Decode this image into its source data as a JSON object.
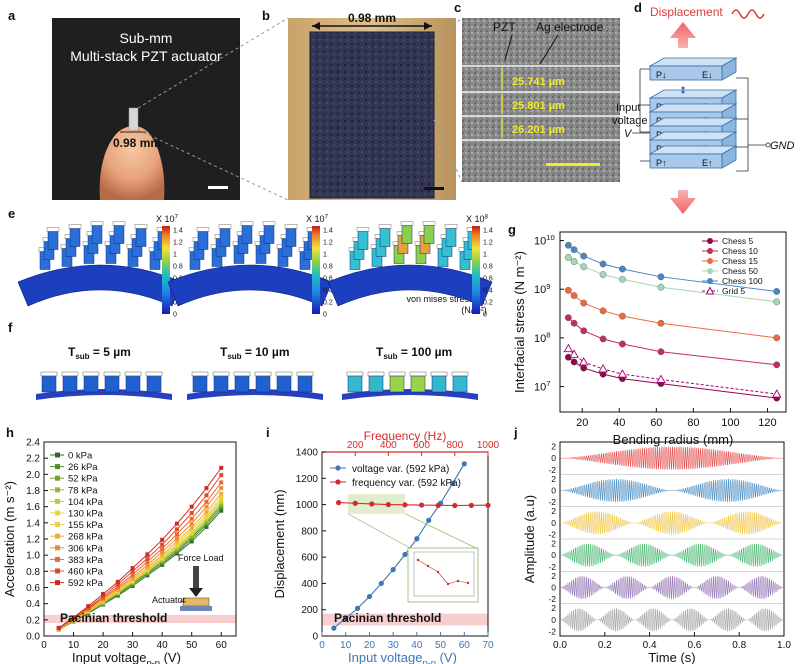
{
  "panels": {
    "a": {
      "letter": "a",
      "title_line1": "Sub-mm",
      "title_line2": "Multi-stack PZT actuator",
      "scale_label": "0.98 mm"
    },
    "b": {
      "letter": "b",
      "scale_label": "0.98 mm"
    },
    "c": {
      "letter": "c",
      "label_pzt": "PZT",
      "label_electrode": "Ag electrode",
      "layer_thickness": [
        "25.741 µm",
        "25.801 µm",
        "26.201 µm"
      ]
    },
    "d": {
      "letter": "d",
      "title": "Displacement",
      "input_label_1": "Input",
      "input_label_2": "voltage",
      "v_label": "V",
      "gnd_label": "GND",
      "pole_top": [
        "P↓",
        "E↓"
      ],
      "pole_rows": [
        [
          "P↑",
          "E↑"
        ],
        [
          "P↓",
          "E↓"
        ],
        [
          "P↑",
          "E↑"
        ],
        [
          "P↓",
          "E↓"
        ],
        [
          "P↑",
          "E↑"
        ]
      ]
    },
    "e": {
      "letter": "e",
      "colorbars": [
        {
          "exponent_label": "X 10",
          "exponent": "7",
          "ticks": [
            "1.4",
            "1.2",
            "1",
            "0.8",
            "0.6",
            "0.4",
            "0.2",
            "0"
          ]
        },
        {
          "exponent_label": "X 10",
          "exponent": "7",
          "ticks": [
            "1.4",
            "1.2",
            "1",
            "0.8",
            "0.6",
            "0.4",
            "0.2",
            "0"
          ]
        },
        {
          "exponent_label": "X 10",
          "exponent": "8",
          "ticks": [
            "1.4",
            "1.2",
            "1",
            "0.8",
            "0.6",
            "0.4",
            "0.2",
            "0"
          ]
        }
      ],
      "stress_label": "von mises stress",
      "stress_unit": "(N/m²)"
    },
    "f": {
      "letter": "f",
      "labels": [
        {
          "prefix": "T",
          "sub": "sub",
          "value": "= 5 µm"
        },
        {
          "prefix": "T",
          "sub": "sub",
          "value": "= 10 µm"
        },
        {
          "prefix": "T",
          "sub": "sub",
          "value": "= 100 µm"
        }
      ]
    },
    "g": {
      "letter": "g"
    },
    "h": {
      "letter": "h",
      "threshold_label": "Pacinian threshold",
      "force_label": "Force Load",
      "actuator_label": "Actuator"
    },
    "i": {
      "letter": "i",
      "threshold_label": "Pacinian threshold"
    },
    "j": {
      "letter": "j"
    }
  },
  "chart_data": [
    {
      "id": "g",
      "type": "line",
      "xlabel": "Bending radius (mm)",
      "ylabel": "Interfacial stress (N m⁻²)",
      "xlim": [
        8,
        130
      ],
      "ylim": [
        3000000,
        15000000000
      ],
      "y_scale": "log",
      "xticks": [
        20,
        40,
        60,
        80,
        100,
        120
      ],
      "ytick_labels": [
        {
          "base": "10",
          "exp": "7",
          "v": 10000000
        },
        {
          "base": "10",
          "exp": "8",
          "v": 100000000
        },
        {
          "base": "10",
          "exp": "9",
          "v": 1000000000
        },
        {
          "base": "10",
          "exp": "10",
          "v": 10000000000
        }
      ],
      "legend_position": "top-right",
      "x": [
        12.5,
        15.6,
        20.8,
        31.25,
        41.7,
        62.5,
        125
      ],
      "series": [
        {
          "name": "Chess 5",
          "color": "#8e0a4a",
          "marker": "circle",
          "dash": "",
          "values": [
            40000000,
            32000000,
            24000000,
            18000000,
            14500000,
            11500000,
            5800000
          ]
        },
        {
          "name": "Chess 10",
          "color": "#c22f56",
          "marker": "circle",
          "dash": "",
          "values": [
            260000000,
            200000000,
            140000000,
            95000000,
            75000000,
            52000000,
            28000000
          ]
        },
        {
          "name": "Chess 15",
          "color": "#ee6a3e",
          "marker": "circle",
          "dash": "",
          "values": [
            950000000,
            740000000,
            520000000,
            360000000,
            280000000,
            200000000,
            100000000
          ]
        },
        {
          "name": "Chess 50",
          "color": "#a3d7b5",
          "marker": "circle",
          "dash": "",
          "values": [
            4500000000,
            3700000000,
            2900000000,
            2000000000,
            1600000000,
            1100000000,
            550000000
          ]
        },
        {
          "name": "Chess 100",
          "color": "#4b86c4",
          "marker": "circle",
          "dash": "",
          "values": [
            8000000000,
            6500000000,
            4800000000,
            3300000000,
            2600000000,
            1800000000,
            900000000
          ]
        },
        {
          "name": "Grid 5",
          "color": "#a5006e",
          "marker": "triangle",
          "dash": "3,2",
          "values": [
            60000000,
            46000000,
            32000000,
            23000000,
            18000000,
            14000000,
            7000000
          ]
        }
      ]
    },
    {
      "id": "h",
      "type": "line",
      "xlabel_main": "Input voltage",
      "xlabel_sub": "p-p",
      "xlabel_unit": " (V)",
      "ylabel": "Acceleration (m s⁻²)",
      "xlim": [
        0,
        65
      ],
      "ylim": [
        0,
        2.4
      ],
      "xticks": [
        0,
        10,
        20,
        30,
        40,
        50,
        60
      ],
      "yticks": [
        0,
        0.2,
        0.4,
        0.6,
        0.8,
        1.0,
        1.2,
        1.4,
        1.6,
        1.8,
        2.0,
        2.2,
        2.4
      ],
      "threshold": [
        0.16,
        0.26
      ],
      "legend_position": "top-left",
      "x": [
        5,
        10,
        15,
        20,
        25,
        30,
        35,
        40,
        45,
        50,
        55,
        60
      ],
      "series": [
        {
          "name": "0 kPa",
          "color": "#2e6b2c",
          "values": [
            0.08,
            0.18,
            0.28,
            0.39,
            0.5,
            0.62,
            0.75,
            0.88,
            1.02,
            1.17,
            1.35,
            1.55
          ]
        },
        {
          "name": "26 kPa",
          "color": "#4a8c2a",
          "values": [
            0.08,
            0.18,
            0.29,
            0.4,
            0.51,
            0.64,
            0.77,
            0.9,
            1.04,
            1.2,
            1.38,
            1.58
          ]
        },
        {
          "name": "52 kPa",
          "color": "#6da42a",
          "values": [
            0.08,
            0.19,
            0.29,
            0.4,
            0.52,
            0.65,
            0.78,
            0.92,
            1.06,
            1.22,
            1.4,
            1.61
          ]
        },
        {
          "name": "78 kPa",
          "color": "#96bb2c",
          "values": [
            0.08,
            0.19,
            0.3,
            0.41,
            0.53,
            0.66,
            0.79,
            0.93,
            1.08,
            1.24,
            1.42,
            1.63
          ]
        },
        {
          "name": "104 kPa",
          "color": "#bfcf33",
          "values": [
            0.09,
            0.19,
            0.3,
            0.42,
            0.54,
            0.67,
            0.81,
            0.95,
            1.1,
            1.26,
            1.45,
            1.66
          ]
        },
        {
          "name": "130 kPa",
          "color": "#e3db3b",
          "values": [
            0.09,
            0.2,
            0.31,
            0.43,
            0.55,
            0.68,
            0.82,
            0.96,
            1.12,
            1.28,
            1.47,
            1.69
          ]
        },
        {
          "name": "155 kPa",
          "color": "#f4cc3f",
          "values": [
            0.09,
            0.2,
            0.31,
            0.43,
            0.56,
            0.69,
            0.83,
            0.98,
            1.14,
            1.31,
            1.5,
            1.72
          ]
        },
        {
          "name": "268 kPa",
          "color": "#f2ac3c",
          "values": [
            0.09,
            0.2,
            0.32,
            0.44,
            0.57,
            0.71,
            0.85,
            1.0,
            1.17,
            1.34,
            1.54,
            1.76
          ]
        },
        {
          "name": "306 kPa",
          "color": "#ee8a36",
          "values": [
            0.09,
            0.21,
            0.33,
            0.46,
            0.59,
            0.73,
            0.88,
            1.04,
            1.21,
            1.39,
            1.6,
            1.83
          ]
        },
        {
          "name": "383 kPa",
          "color": "#e76a31",
          "values": [
            0.1,
            0.21,
            0.34,
            0.47,
            0.61,
            0.76,
            0.92,
            1.08,
            1.26,
            1.45,
            1.66,
            1.9
          ]
        },
        {
          "name": "460 kPa",
          "color": "#de4a2c",
          "values": [
            0.1,
            0.22,
            0.35,
            0.49,
            0.64,
            0.8,
            0.96,
            1.13,
            1.32,
            1.52,
            1.74,
            1.99
          ]
        },
        {
          "name": "592 kPa",
          "color": "#cf2a27",
          "values": [
            0.1,
            0.23,
            0.37,
            0.52,
            0.67,
            0.84,
            1.01,
            1.19,
            1.39,
            1.6,
            1.83,
            2.08
          ]
        }
      ]
    },
    {
      "id": "i",
      "type": "line",
      "xlabel_main": "Input voltage",
      "xlabel_sub": "p-p",
      "xlabel_unit": " (V)",
      "x2label": "Frequency (Hz)",
      "ylabel": "Displacement (nm)",
      "xlim": [
        0,
        70
      ],
      "x2lim": [
        0,
        1000
      ],
      "ylim": [
        0,
        1400
      ],
      "xticks": [
        0,
        10,
        20,
        30,
        40,
        50,
        60,
        70
      ],
      "x2ticks": [
        200,
        400,
        600,
        800,
        1000
      ],
      "yticks": [
        0,
        200,
        400,
        600,
        800,
        1000,
        1200,
        1400
      ],
      "threshold": [
        80,
        170
      ],
      "legend_position": "top-left",
      "series": [
        {
          "name": "voltage var. (592 kPa)",
          "color": "#3b78b5",
          "axis": "bottom",
          "x": [
            5,
            10,
            15,
            20,
            25,
            30,
            35,
            40,
            45,
            50,
            55,
            60
          ],
          "values": [
            60,
            135,
            210,
            300,
            400,
            505,
            620,
            740,
            880,
            1010,
            1160,
            1310
          ]
        },
        {
          "name": "frequency var. (592 kPa)",
          "color": "#d62a2a",
          "axis": "top",
          "x": [
            100,
            200,
            300,
            400,
            500,
            600,
            700,
            800,
            900,
            1000
          ],
          "values": [
            1015,
            1010,
            1005,
            1000,
            998,
            996,
            994,
            993,
            994,
            995
          ]
        }
      ]
    },
    {
      "id": "j",
      "type": "line",
      "xlabel": "Time (s)",
      "ylabel": "Amplitude (a.u)",
      "xlim": [
        0,
        1.0
      ],
      "xticks": [
        0.0,
        0.2,
        0.4,
        0.6,
        0.8,
        1.0
      ],
      "xtick_labels": [
        "0.0",
        "0.2",
        "0.4",
        "0.6",
        "0.8",
        "1.0"
      ],
      "ytick_labels": [
        "2",
        "0",
        "-2"
      ],
      "series": [
        {
          "color": "#e2403e",
          "pulses": 1
        },
        {
          "color": "#3f86bf",
          "pulses": 2
        },
        {
          "color": "#f1c33a",
          "pulses": 3
        },
        {
          "color": "#3fb46a",
          "pulses": 4
        },
        {
          "color": "#8b6aae",
          "pulses": 5
        },
        {
          "color": "#9a9a9a",
          "pulses": 6
        }
      ]
    }
  ]
}
